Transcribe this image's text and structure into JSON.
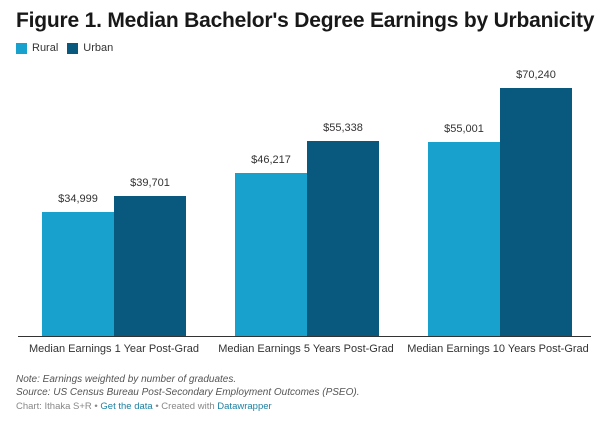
{
  "title": "Figure 1. Median Bachelor's Degree Earnings by Urbanicity",
  "legend": [
    {
      "label": "Rural",
      "color": "#18a1cd"
    },
    {
      "label": "Urban",
      "color": "#09587d"
    }
  ],
  "chart_data": {
    "type": "bar",
    "title": "Figure 1. Median Bachelor's Degree Earnings by Urbanicity",
    "categories": [
      "Median Earnings 1 Year Post-Grad",
      "Median Earnings 5 Years Post-Grad",
      "Median Earnings 10 Years Post-Grad"
    ],
    "series": [
      {
        "name": "Rural",
        "color": "#18a1cd",
        "values": [
          34999,
          46217,
          55001
        ],
        "labels": [
          "$34,999",
          "$46,217",
          "$55,001"
        ]
      },
      {
        "name": "Urban",
        "color": "#09587d",
        "values": [
          39701,
          55338,
          70240
        ],
        "labels": [
          "$39,701",
          "$55,338",
          "$70,240"
        ]
      }
    ],
    "xlabel": "",
    "ylabel": "",
    "ylim": [
      0,
      70240
    ],
    "grid": false,
    "legend_position": "top-left",
    "value_labels": true
  },
  "footer": {
    "note": "Note: Earnings weighted by number of graduates.",
    "source": "Source: US Census Bureau Post-Secondary Employment Outcomes (PSEO).",
    "chart_by": "Chart: Ithaka S+R",
    "sep": " • ",
    "get_data": "Get the data",
    "created_with": "Created with ",
    "datawrapper": "Datawrapper"
  }
}
